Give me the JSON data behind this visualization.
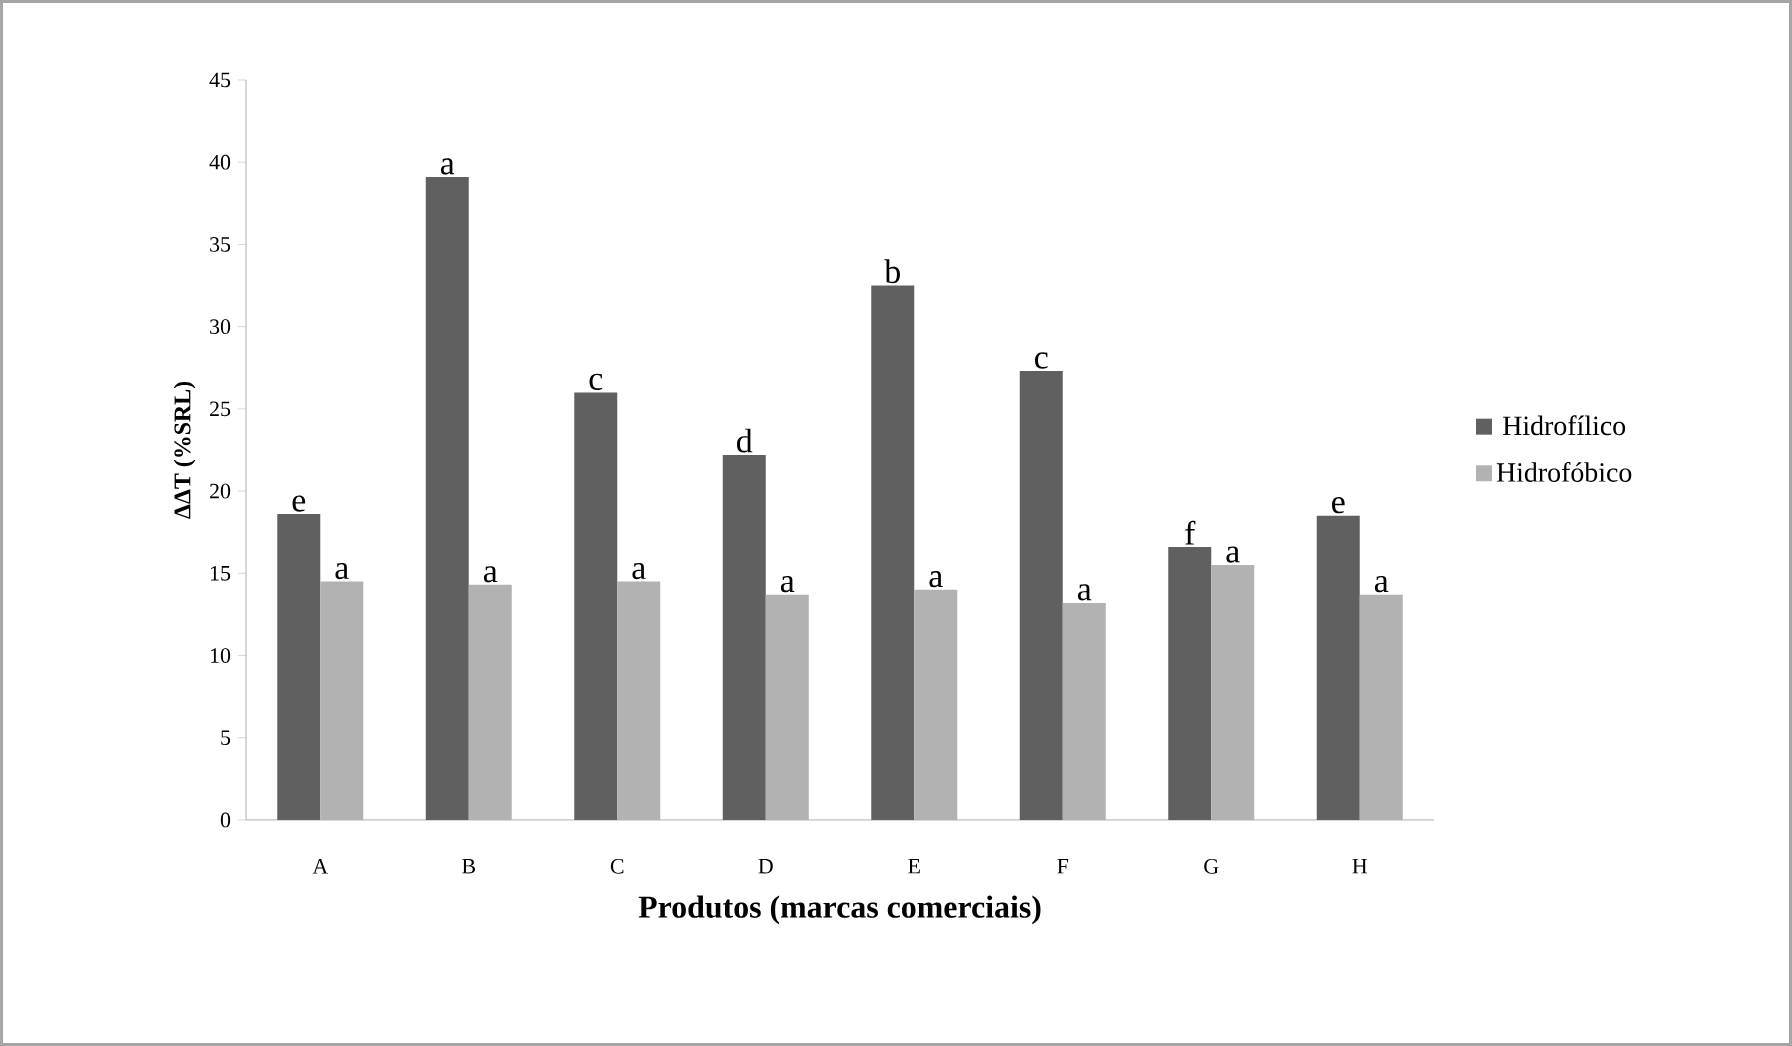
{
  "chart_data": {
    "type": "bar",
    "xlabel": "Produtos (marcas comerciais)",
    "ylabel": "ΔΔT (%SRL)",
    "categories": [
      "A",
      "B",
      "C",
      "D",
      "E",
      "F",
      "G",
      "H"
    ],
    "series": [
      {
        "name": "Hidrofílico",
        "color": "#606060",
        "values": [
          18.6,
          39.1,
          26.0,
          22.2,
          32.5,
          27.3,
          16.6,
          18.5
        ],
        "value_labels": [
          "e",
          "a",
          "c",
          "d",
          "b",
          "c",
          "f",
          "e"
        ]
      },
      {
        "name": "Hidrofóbico",
        "color": "#b2b2b2",
        "values": [
          14.5,
          14.3,
          14.5,
          13.7,
          14.0,
          13.2,
          15.5,
          13.7
        ],
        "value_labels": [
          "a",
          "a",
          "a",
          "a",
          "a",
          "a",
          "a",
          "a"
        ]
      }
    ],
    "ylim": [
      0,
      45
    ],
    "yticks": [
      0,
      5,
      10,
      15,
      20,
      25,
      30,
      35,
      40,
      45
    ],
    "grid": false,
    "legend": "right"
  }
}
